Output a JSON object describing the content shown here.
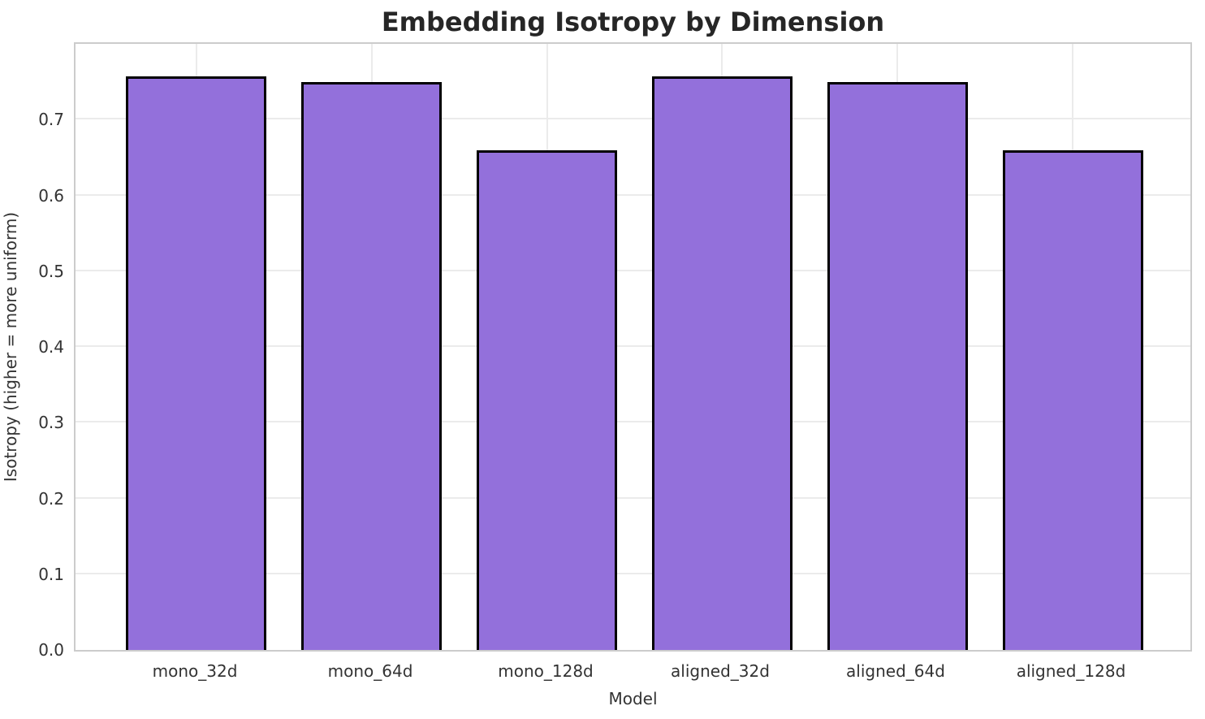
{
  "chart_data": {
    "type": "bar",
    "title": "Embedding Isotropy by Dimension",
    "xlabel": "Model",
    "ylabel": "Isotropy (higher = more uniform)",
    "categories": [
      "mono_32d",
      "mono_64d",
      "mono_128d",
      "aligned_32d",
      "aligned_64d",
      "aligned_128d"
    ],
    "values": [
      0.757,
      0.75,
      0.659,
      0.757,
      0.75,
      0.659
    ],
    "ylim": [
      0,
      0.8
    ],
    "yticks": [
      0.0,
      0.1,
      0.2,
      0.3,
      0.4,
      0.5,
      0.6,
      0.7
    ],
    "ytick_labels": [
      "0.0",
      "0.1",
      "0.2",
      "0.3",
      "0.4",
      "0.5",
      "0.6",
      "0.7"
    ],
    "grid": true,
    "legend": false,
    "bar_color": "#9370DB",
    "bar_edge_color": "#000000",
    "grid_color": "#ebebeb",
    "spine_color": "#cccccc",
    "text_color": "#333333",
    "title_color": "#262626",
    "background_color": "#ffffff"
  }
}
